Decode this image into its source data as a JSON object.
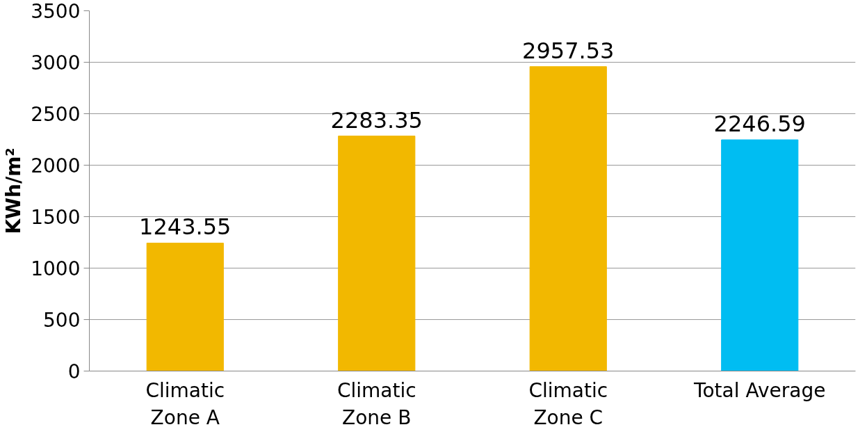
{
  "chart_data": {
    "type": "bar",
    "ylabel": "KWh/m²",
    "categories": [
      "Climatic Zone A",
      "Climatic Zone B",
      "Climatic Zone C",
      "Total Average"
    ],
    "values": [
      1243.55,
      2283.35,
      2957.53,
      2246.59
    ],
    "colors": [
      "#f2b800",
      "#f2b800",
      "#f2b800",
      "#00bdf2"
    ],
    "ylim": [
      0,
      3500
    ],
    "yticks": [
      0,
      500,
      1000,
      1500,
      2000,
      2500,
      3000,
      3500
    ],
    "grid": "y",
    "data_labels": true
  }
}
